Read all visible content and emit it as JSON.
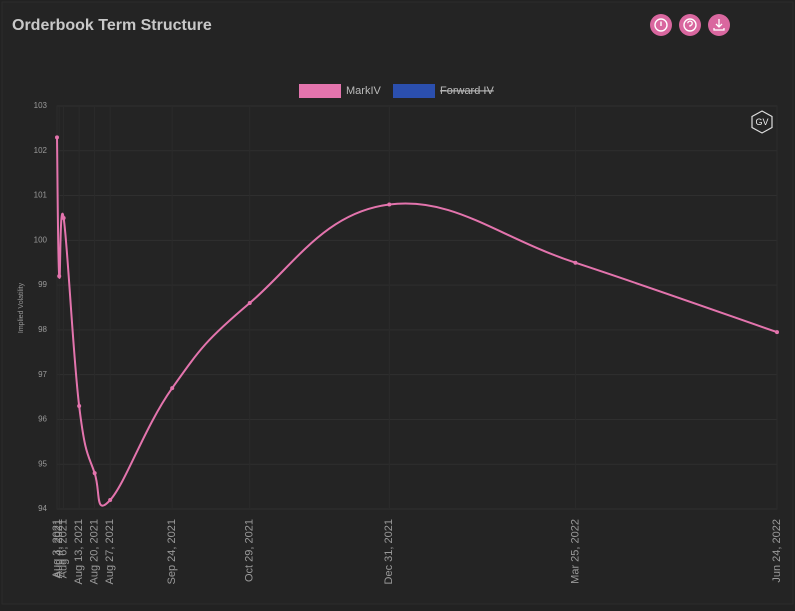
{
  "header": {
    "title": "Orderbook Term Structure",
    "logo": "GV"
  },
  "chart_data": {
    "type": "line",
    "x": [
      "Aug 3, 2021",
      "Aug 4, 2021",
      "Aug 6, 2021",
      "Aug 13, 2021",
      "Aug 20, 2021",
      "Aug 27, 2021",
      "Sep 24, 2021",
      "Oct 29, 2021",
      "Dec 31, 2021",
      "Mar 25, 2022",
      "Jun 24, 2022"
    ],
    "series": [
      {
        "name": "MarkIV",
        "color": "#e374ad",
        "values": [
          102.3,
          99.2,
          100.5,
          96.3,
          94.8,
          94.2,
          96.7,
          98.6,
          100.8,
          99.5,
          97.95
        ]
      },
      {
        "name": "Forward IV",
        "color": "#2b4fae",
        "hidden": true,
        "values": [
          null,
          null,
          null,
          null,
          null,
          null,
          null,
          null,
          null,
          null,
          null
        ]
      }
    ],
    "ylabel": "Implied Volatility",
    "ylim": [
      94,
      103
    ],
    "yticks": [
      94,
      95,
      96,
      97,
      98,
      99,
      100,
      101,
      102,
      103
    ],
    "grid": true,
    "legend": "top"
  }
}
